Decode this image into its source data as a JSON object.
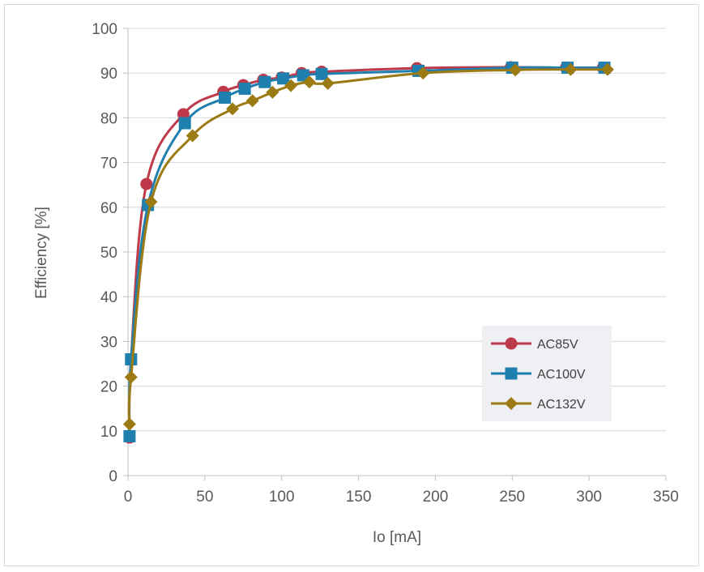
{
  "chart_data": {
    "type": "line",
    "title": "",
    "xlabel": "Io [mA]",
    "ylabel": "Efficiency [%]",
    "xlim": [
      0,
      350
    ],
    "ylim": [
      0,
      100
    ],
    "xticks": [
      0,
      50,
      100,
      150,
      200,
      250,
      300,
      350
    ],
    "yticks": [
      0,
      10,
      20,
      30,
      40,
      50,
      60,
      70,
      80,
      90,
      100
    ],
    "grid": "horizontal",
    "legend_position": "bottom-right",
    "series": [
      {
        "name": "AC85V",
        "color": "#be3a4a",
        "marker": "circle",
        "points": [
          [
            1,
            8.5
          ],
          [
            2,
            26
          ],
          [
            12,
            65.2
          ],
          [
            36,
            80.8
          ],
          [
            62,
            85.8
          ],
          [
            75,
            87.3
          ],
          [
            88,
            88.5
          ],
          [
            100,
            89
          ],
          [
            113,
            90
          ],
          [
            126,
            90.3
          ],
          [
            188,
            91.1
          ],
          [
            249,
            91.3
          ],
          [
            285,
            91.2
          ],
          [
            309,
            91.2
          ]
        ]
      },
      {
        "name": "AC100V",
        "color": "#1f7fae",
        "marker": "square",
        "points": [
          [
            1,
            8.8
          ],
          [
            2,
            26
          ],
          [
            13,
            60.5
          ],
          [
            37,
            78.8
          ],
          [
            63,
            84.5
          ],
          [
            76,
            86.5
          ],
          [
            89,
            88
          ],
          [
            101,
            88.8
          ],
          [
            114,
            89.5
          ],
          [
            126,
            89.8
          ],
          [
            189,
            90.5
          ],
          [
            250,
            91.2
          ],
          [
            286,
            91.2
          ],
          [
            310,
            91.2
          ]
        ]
      },
      {
        "name": "AC132V",
        "color": "#9c7a14",
        "marker": "diamond",
        "points": [
          [
            1,
            11.5
          ],
          [
            2,
            22
          ],
          [
            15,
            61.2
          ],
          [
            42,
            76
          ],
          [
            68,
            82
          ],
          [
            81,
            83.8
          ],
          [
            94,
            85.7
          ],
          [
            106,
            87.2
          ],
          [
            118,
            88
          ],
          [
            130,
            87.7
          ],
          [
            192,
            90
          ],
          [
            252,
            90.7
          ],
          [
            288,
            90.8
          ],
          [
            312,
            90.8
          ]
        ]
      }
    ]
  }
}
